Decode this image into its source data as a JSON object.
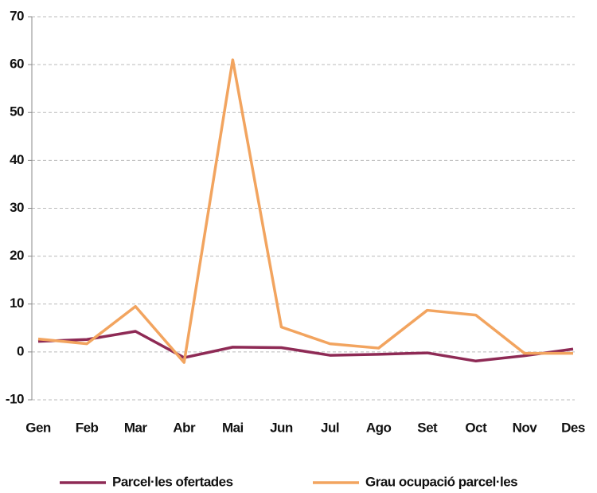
{
  "chart_data": {
    "type": "line",
    "categories": [
      "Gen",
      "Feb",
      "Mar",
      "Abr",
      "Mai",
      "Jun",
      "Jul",
      "Ago",
      "Set",
      "Oct",
      "Nov",
      "Des"
    ],
    "series": [
      {
        "name": "Parcel·les ofertades",
        "color": "#8e2a55",
        "values": [
          2.2,
          2.6,
          4.3,
          -1.2,
          1.0,
          0.9,
          -0.7,
          -0.5,
          -0.2,
          -1.9,
          -0.8,
          0.6
        ]
      },
      {
        "name": "Grau ocupació parcel·les",
        "color": "#f2a45f",
        "values": [
          2.7,
          1.7,
          9.5,
          -2.2,
          61,
          5.2,
          1.7,
          0.8,
          8.7,
          7.7,
          -0.3,
          -0.3
        ]
      }
    ],
    "ylim": [
      -10,
      70
    ],
    "yticks": [
      -10,
      0,
      10,
      20,
      30,
      40,
      50,
      60,
      70
    ],
    "grid": true,
    "legend": "bottom"
  }
}
